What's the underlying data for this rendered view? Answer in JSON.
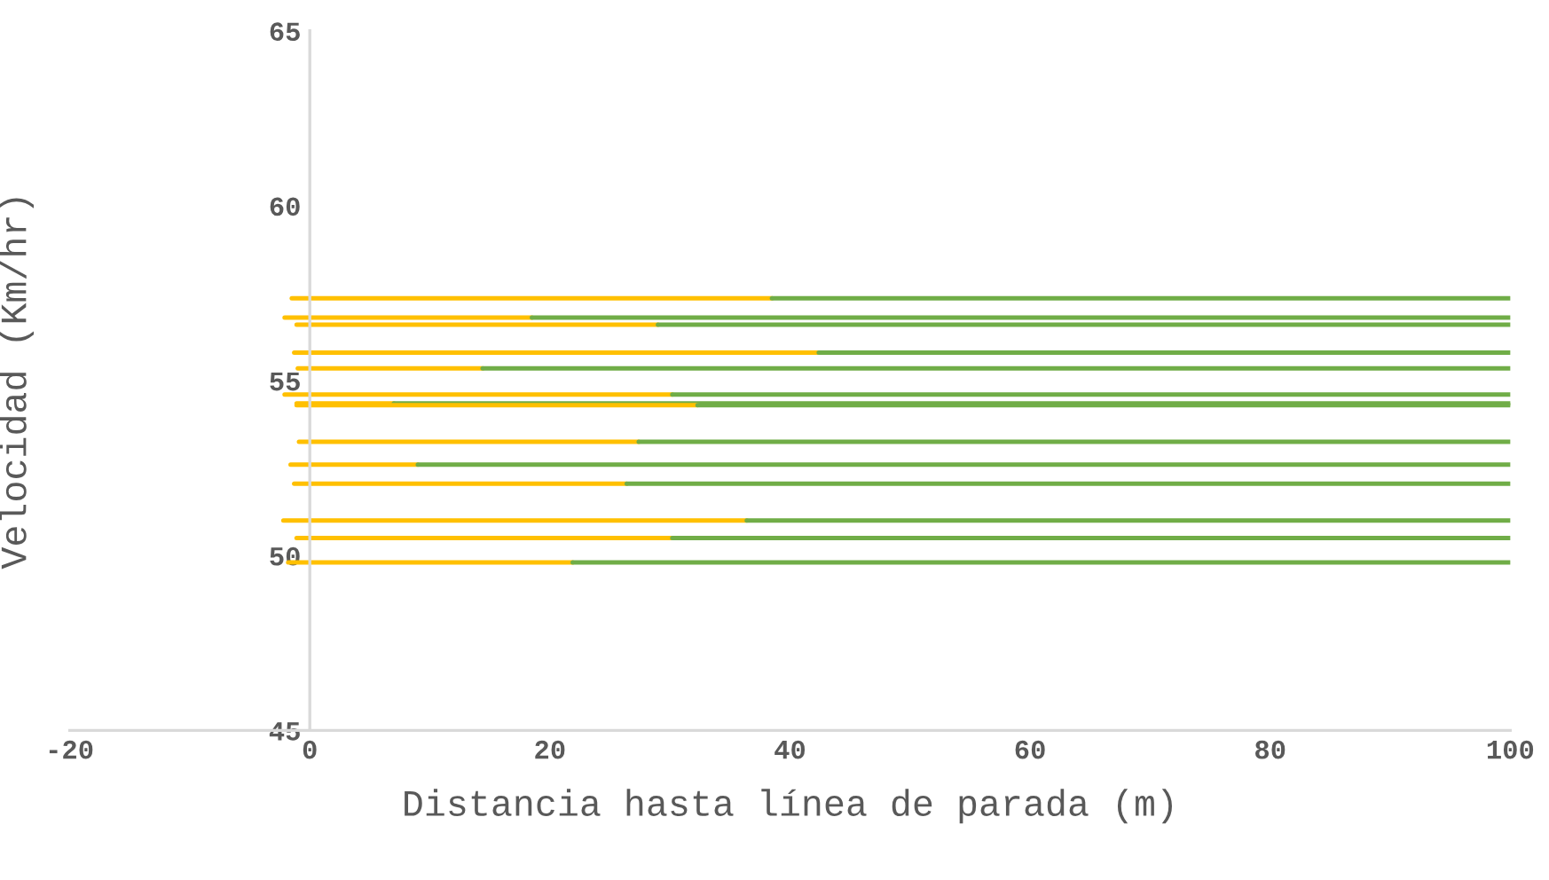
{
  "chart_data": {
    "type": "line",
    "xlabel": "Distancia hasta línea de parada (m)",
    "ylabel": "Velocidad (Km/hr)",
    "xlim": [
      -20,
      100
    ],
    "xticks": [
      -20,
      0,
      20,
      40,
      60,
      80,
      100
    ],
    "ylim": [
      45,
      65
    ],
    "yticks": [
      45,
      50,
      55,
      60,
      65
    ],
    "grid": false,
    "legend": false,
    "marker": "none",
    "line_style": "solid",
    "series": [
      {
        "color": "#ffc000",
        "x": [
          -1.5,
          38.5
        ],
        "values": [
          57.35,
          57.35
        ]
      },
      {
        "color": "#70ad47",
        "x": [
          38.5,
          100
        ],
        "values": [
          57.35,
          57.35
        ]
      },
      {
        "color": "#ffc000",
        "x": [
          -2.1,
          18.5
        ],
        "values": [
          56.8,
          56.8
        ]
      },
      {
        "color": "#70ad47",
        "x": [
          18.5,
          100
        ],
        "values": [
          56.8,
          56.8
        ]
      },
      {
        "color": "#ffc000",
        "x": [
          -1.1,
          29
        ],
        "values": [
          56.6,
          56.6
        ]
      },
      {
        "color": "#70ad47",
        "x": [
          29,
          100
        ],
        "values": [
          56.6,
          56.6
        ]
      },
      {
        "color": "#ffc000",
        "x": [
          -1.3,
          42.4
        ],
        "values": [
          55.8,
          55.8
        ]
      },
      {
        "color": "#70ad47",
        "x": [
          42.4,
          100
        ],
        "values": [
          55.8,
          55.8
        ]
      },
      {
        "color": "#ffc000",
        "x": [
          -1,
          14.4
        ],
        "values": [
          55.35,
          55.35
        ]
      },
      {
        "color": "#70ad47",
        "x": [
          14.4,
          100
        ],
        "values": [
          55.35,
          55.35
        ]
      },
      {
        "color": "#ffc000",
        "x": [
          -2.1,
          30.2
        ],
        "values": [
          54.6,
          54.6
        ]
      },
      {
        "color": "#70ad47",
        "x": [
          30.2,
          100
        ],
        "values": [
          54.6,
          54.6
        ]
      },
      {
        "color": "#ffc000",
        "x": [
          -1.1,
          7
        ],
        "values": [
          54.35,
          54.35
        ]
      },
      {
        "color": "#70ad47",
        "x": [
          7,
          100
        ],
        "values": [
          54.35,
          54.35
        ]
      },
      {
        "color": "#ffc000",
        "x": [
          -1.1,
          32.3
        ],
        "values": [
          54.3,
          54.3
        ]
      },
      {
        "color": "#70ad47",
        "x": [
          32.3,
          100
        ],
        "values": [
          54.3,
          54.3
        ]
      },
      {
        "color": "#ffc000",
        "x": [
          -0.9,
          27.4
        ],
        "values": [
          53.25,
          53.25
        ]
      },
      {
        "color": "#70ad47",
        "x": [
          27.4,
          100
        ],
        "values": [
          53.25,
          53.25
        ]
      },
      {
        "color": "#ffc000",
        "x": [
          -1.6,
          9
        ],
        "values": [
          52.6,
          52.6
        ]
      },
      {
        "color": "#70ad47",
        "x": [
          9,
          100
        ],
        "values": [
          52.6,
          52.6
        ]
      },
      {
        "color": "#ffc000",
        "x": [
          -1.3,
          26.4
        ],
        "values": [
          52.05,
          52.05
        ]
      },
      {
        "color": "#70ad47",
        "x": [
          26.4,
          100
        ],
        "values": [
          52.05,
          52.05
        ]
      },
      {
        "color": "#ffc000",
        "x": [
          -2.2,
          36.4
        ],
        "values": [
          51.0,
          51.0
        ]
      },
      {
        "color": "#70ad47",
        "x": [
          36.4,
          100
        ],
        "values": [
          51.0,
          51.0
        ]
      },
      {
        "color": "#ffc000",
        "x": [
          -1.1,
          30.2
        ],
        "values": [
          50.5,
          50.5
        ]
      },
      {
        "color": "#70ad47",
        "x": [
          30.2,
          100
        ],
        "values": [
          50.5,
          50.5
        ]
      },
      {
        "color": "#ffc000",
        "x": [
          -1.8,
          21.9
        ],
        "values": [
          49.8,
          49.8
        ]
      },
      {
        "color": "#70ad47",
        "x": [
          21.9,
          100
        ],
        "values": [
          49.8,
          49.8
        ]
      }
    ]
  }
}
